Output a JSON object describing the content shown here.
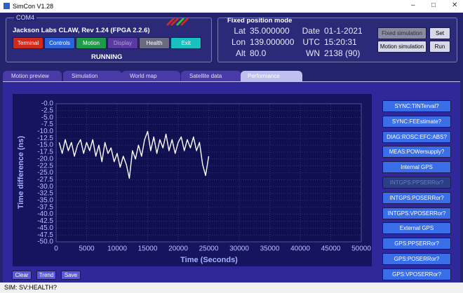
{
  "window": {
    "title": "SimCon V1.28"
  },
  "device_panel": {
    "port": "COM4",
    "device": "Jackson Labs CLAW, Rev 1.24 (FPGA 2.2.6)",
    "buttons": [
      "Terminal",
      "Controls",
      "Motion",
      "Display",
      "Health",
      "Exit"
    ],
    "status": "RUNNING"
  },
  "position_panel": {
    "title": "Fixed position mode",
    "fields": [
      {
        "label": "Lat",
        "value": "35.000000"
      },
      {
        "label": "Lon",
        "value": "139.000000"
      },
      {
        "label": "Alt",
        "value": "80.0"
      },
      {
        "label": "Date",
        "value": "01-1-2021"
      },
      {
        "label": "UTC",
        "value": "15:20:31"
      },
      {
        "label": "WN",
        "value": "2138 (90)"
      }
    ],
    "buttons": [
      "Fixed simulation",
      "Set",
      "Motion simulation",
      "Run"
    ]
  },
  "tabs": [
    "Motion preview",
    "Simulation",
    "World map",
    "Satellite data",
    "Performance"
  ],
  "chart_data": {
    "type": "line",
    "xlabel": "Time (Seconds)",
    "ylabel": "Time difference (ns)",
    "x": [
      500,
      1000,
      1500,
      2000,
      2500,
      3000,
      3500,
      4000,
      4500,
      5000,
      5500,
      6000,
      6500,
      7000,
      7500,
      8000,
      8500,
      9000,
      9500,
      10000,
      10500,
      11000,
      11500,
      12000,
      12500,
      13000,
      13500,
      14000,
      14500,
      15000,
      15500,
      16000,
      16500,
      17000,
      17500,
      18000,
      18500,
      19000,
      19500,
      20000,
      20500,
      21000,
      21500,
      22000,
      22500,
      23000,
      23500,
      24000,
      24500,
      25000
    ],
    "values": [
      -14,
      -18,
      -13,
      -17,
      -14,
      -19,
      -15,
      -13,
      -18,
      -14,
      -17,
      -13,
      -19,
      -15,
      -21,
      -14,
      -18,
      -16,
      -21,
      -18,
      -23,
      -19,
      -22,
      -27,
      -17,
      -20,
      -15,
      -19,
      -13,
      -10,
      -17,
      -12,
      -18,
      -13,
      -16,
      -11,
      -17,
      -13,
      -18,
      -14,
      -12,
      -17,
      -13,
      -16,
      -12,
      -17,
      -14,
      -22,
      -26,
      -19
    ],
    "color": "#ffffff",
    "xlim": [
      0,
      50000
    ],
    "ylim": [
      -50,
      0
    ],
    "xticks": [
      0,
      5000,
      10000,
      15000,
      20000,
      25000,
      30000,
      35000,
      40000,
      45000,
      50000
    ],
    "yticks": [
      {
        "value": 0,
        "label": "-0.0"
      },
      -2.5,
      {
        "value": -5,
        "label": "-5.0"
      },
      -7.5,
      {
        "value": -10,
        "label": "-10.0"
      },
      -12.5,
      {
        "value": -15,
        "label": "-15.0"
      },
      -17.5,
      {
        "value": -20,
        "label": "-20.0"
      },
      -22.5,
      {
        "value": -25,
        "label": "-25.0"
      },
      -27.5,
      {
        "value": -30,
        "label": "-30.0"
      },
      -32.5,
      {
        "value": -35,
        "label": "-35.0"
      },
      -37.5,
      {
        "value": -40,
        "label": "-40.0"
      },
      -42.5,
      {
        "value": -45,
        "label": "-45.0"
      },
      -47.5,
      {
        "value": -50,
        "label": "-50.0"
      }
    ],
    "grid": true
  },
  "command_buttons": [
    "SYNC:TINTerval?",
    "SYNC:FEEstimate?",
    "DIAG:ROSC:EFC:ABS?",
    "MEAS:POWersupply?",
    "Internal GPS",
    "INTGPS:PPSERRor?",
    "INTGPS:POSERRor?",
    "INTGPS:VPOSERRor?",
    "External GPS",
    "GPS:PPSERRor?",
    "GPS:POSERRor?",
    "GPS:VPOSERRor?"
  ],
  "bottom_buttons": [
    "Clear",
    "Trend",
    "Save"
  ],
  "status_bar": "SIM: SV:HEALTH?"
}
